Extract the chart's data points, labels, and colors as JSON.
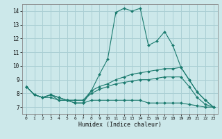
{
  "title": "",
  "xlabel": "Humidex (Indice chaleur)",
  "bg_color": "#cce8ea",
  "grid_color": "#aacfd4",
  "line_color": "#1a7a6e",
  "xlim": [
    -0.5,
    23.5
  ],
  "ylim": [
    6.5,
    14.5
  ],
  "yticks": [
    7,
    8,
    9,
    10,
    11,
    12,
    13,
    14
  ],
  "xticks": [
    0,
    1,
    2,
    3,
    4,
    5,
    6,
    7,
    8,
    9,
    10,
    11,
    12,
    13,
    14,
    15,
    16,
    17,
    18,
    19,
    20,
    21,
    22,
    23
  ],
  "series": [
    [
      8.5,
      7.9,
      7.7,
      7.9,
      7.5,
      7.5,
      7.3,
      7.3,
      8.2,
      9.4,
      10.5,
      13.9,
      14.2,
      14.0,
      14.2,
      11.5,
      11.8,
      12.5,
      11.5,
      9.9,
      9.0,
      8.1,
      7.5,
      7.0
    ],
    [
      8.5,
      7.9,
      7.7,
      7.9,
      7.7,
      7.5,
      7.5,
      7.5,
      8.2,
      8.5,
      8.7,
      9.0,
      9.2,
      9.4,
      9.5,
      9.6,
      9.7,
      9.8,
      9.8,
      9.9,
      9.0,
      8.1,
      7.5,
      7.0
    ],
    [
      8.5,
      7.9,
      7.7,
      7.9,
      7.7,
      7.5,
      7.5,
      7.5,
      8.0,
      8.3,
      8.5,
      8.7,
      8.8,
      8.9,
      9.0,
      9.0,
      9.1,
      9.2,
      9.2,
      9.2,
      8.5,
      7.7,
      7.2,
      7.0
    ],
    [
      8.5,
      7.9,
      7.7,
      7.7,
      7.5,
      7.5,
      7.3,
      7.3,
      7.5,
      7.5,
      7.5,
      7.5,
      7.5,
      7.5,
      7.5,
      7.3,
      7.3,
      7.3,
      7.3,
      7.3,
      7.2,
      7.1,
      7.0,
      7.0
    ]
  ]
}
